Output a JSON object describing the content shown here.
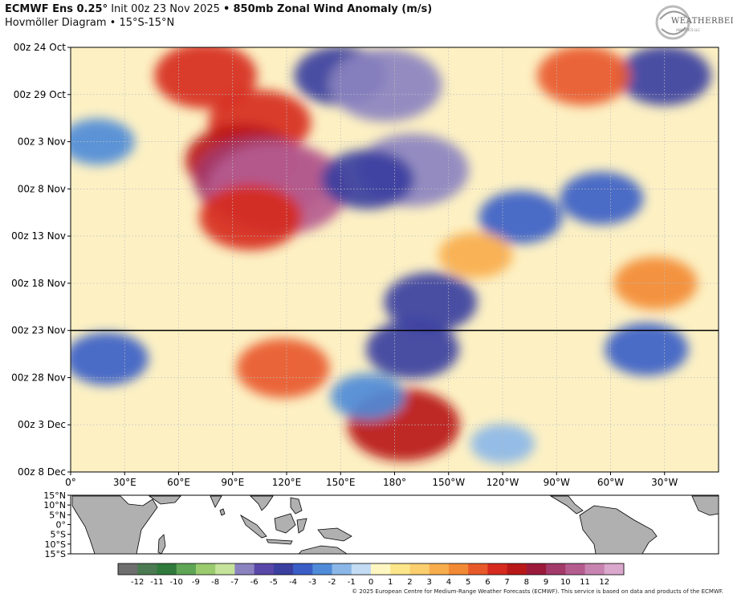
{
  "header": {
    "model": "ECMWF Ens 0.25°",
    "init": "Init 00z 23 Nov 2025",
    "bullet": "•",
    "field": "850mb Zonal Wind Anomaly (m/s)",
    "subtitle": "Hovmöller Diagram • 15°S-15°N"
  },
  "logo": {
    "text": "WEATHERBELL",
    "sub": "ANALYTICS LLC"
  },
  "credit": "© 2025 European Centre for Medium-Range Weather Forecasts (ECMWF). This service is based on data and products of the ECMWF.",
  "colors": {
    "easterly_scale": [
      "#6e6e6e",
      "#4c7a52",
      "#2f7a3c",
      "#5ea556",
      "#9acb6e",
      "#c5e39a",
      "#8b83c0",
      "#5a48a8",
      "#3b3fa0",
      "#3a5ec6",
      "#4f8bd8",
      "#8bb7e8",
      "#c3dcf3",
      "#e6e6e6"
    ],
    "westerly_scale": [
      "#fff7c2",
      "#fde68a",
      "#fbcf6e",
      "#f8ad4c",
      "#f28a35",
      "#e8592a",
      "#d62a1f",
      "#b81818",
      "#9b1a3b",
      "#a33a6a",
      "#b55c8f",
      "#c884b0",
      "#dba8cd"
    ],
    "init_line": "#000000"
  },
  "chart_data": {
    "type": "heatmap",
    "title": "850mb Zonal Wind Anomaly (m/s)",
    "subtitle": "Hovmöller Diagram • 15°S-15°N",
    "x_axis": {
      "ticks": [
        "0°",
        "30°E",
        "60°E",
        "90°E",
        "120°E",
        "150°E",
        "180°",
        "150°W",
        "120°W",
        "90°W",
        "60°W",
        "30°W"
      ],
      "tick_values": [
        0,
        30,
        60,
        90,
        120,
        150,
        180,
        210,
        240,
        270,
        300,
        330
      ],
      "range": [
        0,
        360
      ]
    },
    "y_axis": {
      "ticks": [
        "00z 24 Oct",
        "00z 29 Oct",
        "00z 3 Nov",
        "00z 8 Nov",
        "00z 13 Nov",
        "00z 18 Nov",
        "00z 23 Nov",
        "00z 28 Nov",
        "00z 3 Dec",
        "00z 8 Dec"
      ],
      "tick_values": [
        "2025-10-24",
        "2025-10-29",
        "2025-11-03",
        "2025-11-08",
        "2025-11-13",
        "2025-11-18",
        "2025-11-23",
        "2025-11-28",
        "2025-12-03",
        "2025-12-08"
      ],
      "range": [
        "2025-10-24",
        "2025-12-08"
      ],
      "direction": "time increases downward"
    },
    "init_line_time": "2025-11-23",
    "grid": true,
    "colorbar": {
      "ticks": [
        "-12",
        "-11",
        "-10",
        "-9",
        "-8",
        "-7",
        "-6",
        "-5",
        "-4",
        "-3",
        "-2",
        "-1",
        "0",
        "1",
        "2",
        "3",
        "4",
        "5",
        "6",
        "7",
        "8",
        "9",
        "10",
        "11",
        "12"
      ],
      "range": [
        -13,
        13
      ],
      "units": "m/s"
    },
    "features": [
      {
        "lon": 75,
        "time": "2025-10-27",
        "value": 6
      },
      {
        "lon": 105,
        "time": "2025-11-01",
        "value": 6
      },
      {
        "lon": 95,
        "time": "2025-11-05",
        "value": 7
      },
      {
        "lon": 105,
        "time": "2025-11-07",
        "value": 9
      },
      {
        "lon": 115,
        "time": "2025-11-08",
        "value": 10
      },
      {
        "lon": 100,
        "time": "2025-11-11",
        "value": 6
      },
      {
        "lon": 185,
        "time": "2025-12-03",
        "value": 7
      },
      {
        "lon": 118,
        "time": "2025-11-27",
        "value": 5
      },
      {
        "lon": 150,
        "time": "2025-10-27",
        "value": -5
      },
      {
        "lon": 175,
        "time": "2025-10-28",
        "value": -7
      },
      {
        "lon": 190,
        "time": "2025-11-06",
        "value": -7
      },
      {
        "lon": 165,
        "time": "2025-11-07",
        "value": -5
      },
      {
        "lon": 200,
        "time": "2025-11-20",
        "value": -5
      },
      {
        "lon": 190,
        "time": "2025-11-25",
        "value": -5
      },
      {
        "lon": 165,
        "time": "2025-11-30",
        "value": -3
      },
      {
        "lon": 20,
        "time": "2025-11-26",
        "value": -4
      },
      {
        "lon": 15,
        "time": "2025-11-03",
        "value": -3
      },
      {
        "lon": 250,
        "time": "2025-11-11",
        "value": -4
      },
      {
        "lon": 295,
        "time": "2025-11-09",
        "value": -4
      },
      {
        "lon": 330,
        "time": "2025-10-27",
        "value": -5
      },
      {
        "lon": 320,
        "time": "2025-11-25",
        "value": -4
      },
      {
        "lon": 225,
        "time": "2025-11-15",
        "value": 3
      },
      {
        "lon": 285,
        "time": "2025-10-27",
        "value": 5
      },
      {
        "lon": 325,
        "time": "2025-11-18",
        "value": 4
      },
      {
        "lon": 240,
        "time": "2025-12-05",
        "value": -2
      }
    ]
  },
  "map_panel": {
    "lat_ticks": [
      "15°N",
      "10°N",
      "5°N",
      "0°",
      "5°S",
      "10°S",
      "15°S"
    ]
  }
}
